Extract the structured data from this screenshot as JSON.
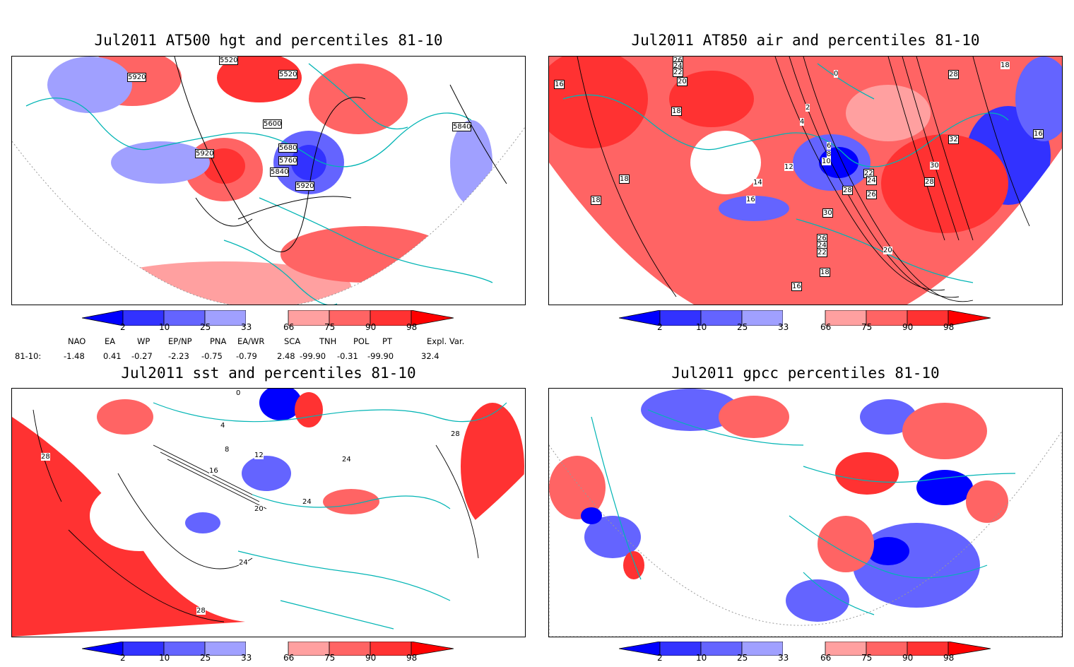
{
  "panels": [
    {
      "title": "Jul2011 AT500 hgt and percentiles 81-10",
      "contours": [
        "5520",
        "5520",
        "5920",
        "5600",
        "5680",
        "5760",
        "5840",
        "5920",
        "5920",
        "5840"
      ]
    },
    {
      "title": "Jul2011 AT850 air and percentiles 81-10",
      "contours": [
        "26",
        "24",
        "22",
        "20",
        "18",
        "0",
        "2",
        "4",
        "6",
        "8",
        "10",
        "12",
        "14",
        "16",
        "18",
        "16",
        "22",
        "24",
        "26",
        "28",
        "30",
        "32",
        "28",
        "26",
        "24",
        "22",
        "20",
        "18",
        "16",
        "16",
        "18",
        "30",
        "28",
        "18"
      ]
    },
    {
      "title": "Jul2011 sst and percentiles 81-10",
      "contours": [
        "0",
        "4",
        "8",
        "12",
        "16",
        "20",
        "24",
        "28",
        "28",
        "24",
        "24",
        "28"
      ]
    },
    {
      "title": "Jul2011 gpcc percentiles 81-10",
      "contours": []
    }
  ],
  "colorbar": {
    "labels": [
      "2",
      "10",
      "25",
      "33",
      "66",
      "75",
      "90",
      "98"
    ],
    "colors": [
      "#0000ff",
      "#3232ff",
      "#6464ff",
      "#a0a0ff",
      "#ffffff",
      "#ffa0a0",
      "#ff6464",
      "#ff3232",
      "#ff0000"
    ]
  },
  "indices": {
    "headers": [
      "NAO",
      "EA",
      "WP",
      "EP/NP",
      "PNA",
      "EA/WR",
      "SCA",
      "TNH",
      "POL",
      "PT",
      "Expl. Var."
    ],
    "row_label": "81-10:",
    "values": [
      "-1.48",
      "0.41",
      "-0.27",
      "-2.23",
      "-0.75",
      "-0.79",
      "2.48",
      "-99.90",
      "-0.31",
      "-99.90",
      "32.4"
    ]
  },
  "colors": {
    "coast": "#00b4b4",
    "frame": "#000000"
  }
}
